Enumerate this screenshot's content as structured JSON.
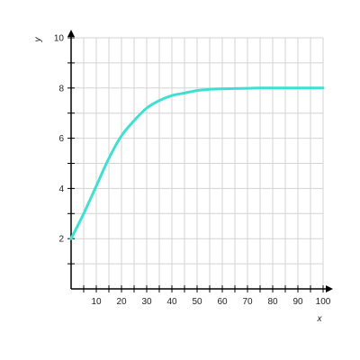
{
  "chart_data": {
    "type": "line",
    "title": "",
    "xlabel": "x",
    "ylabel": "y",
    "xlim": [
      0,
      100
    ],
    "ylim": [
      0,
      10
    ],
    "grid": true,
    "x_grid_step": 5,
    "y_grid_step": 1,
    "x_ticks": [
      10,
      20,
      30,
      40,
      50,
      60,
      70,
      80,
      90,
      100
    ],
    "x_tick_labels": [
      "10",
      "20",
      "30",
      "40",
      "50",
      "60",
      "70",
      "80",
      "90",
      "100"
    ],
    "y_ticks": [
      2,
      4,
      6,
      8,
      10
    ],
    "y_tick_labels": [
      "2",
      "4",
      "6",
      "8",
      "10"
    ],
    "series": [
      {
        "color": "#40E0D0",
        "x": [
          0,
          5,
          10,
          15,
          20,
          25,
          30,
          35,
          40,
          45,
          50,
          55,
          60,
          65,
          70,
          75,
          80,
          85,
          90,
          95,
          100
        ],
        "y": [
          2.0,
          3.0,
          4.1,
          5.2,
          6.1,
          6.7,
          7.2,
          7.5,
          7.7,
          7.8,
          7.9,
          7.95,
          7.97,
          7.98,
          7.99,
          8.0,
          8.0,
          8.0,
          8.0,
          8.0,
          8.0
        ]
      }
    ],
    "colors": {
      "axis": "#000000",
      "grid": "#d3d3d3",
      "line": "#40E0D0"
    }
  }
}
